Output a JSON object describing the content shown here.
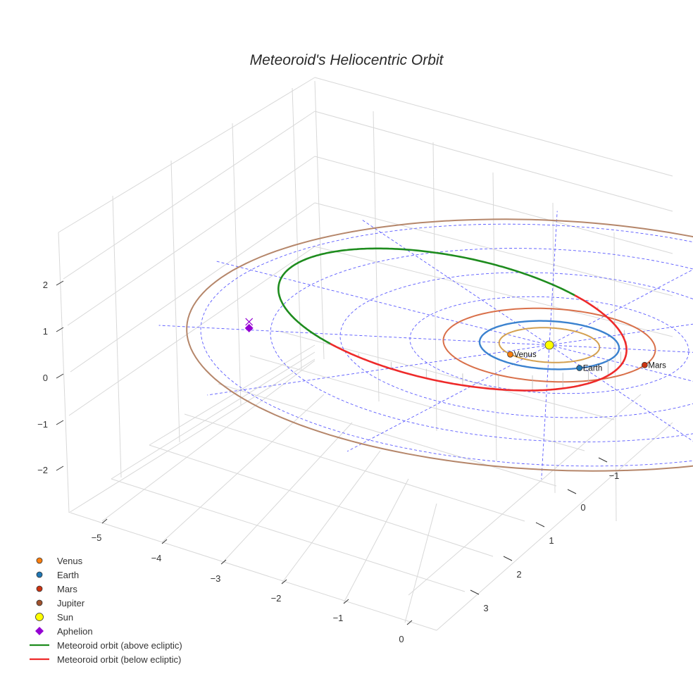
{
  "chart_data": {
    "type": "scatter3d",
    "title": "Meteoroid's Heliocentric Orbit",
    "axes": {
      "x": {
        "ticks": [
          -5,
          -4,
          -3,
          -2,
          -1,
          0
        ],
        "tick_labels": [
          "−5",
          "−4",
          "−3",
          "−2",
          "−1",
          "0"
        ]
      },
      "y": {
        "ticks": [
          -1,
          0,
          1,
          2,
          3
        ],
        "tick_labels": [
          "−1",
          "0",
          "1",
          "2",
          "3"
        ]
      },
      "z": {
        "ticks": [
          -2,
          -1,
          0,
          1,
          2
        ],
        "tick_labels": [
          "−2",
          "−1",
          "0",
          "1",
          "2"
        ]
      }
    },
    "grid": true,
    "legend_position": "bottom-left",
    "bodies": [
      {
        "name": "Venus",
        "label": "Venus",
        "color": "#ff7f0e",
        "orbit_color": "#d4a050",
        "orbit_radius_au": 0.72,
        "position": {
          "x": -0.55,
          "y": 0.47,
          "z": 0
        }
      },
      {
        "name": "Earth",
        "label": "Earth",
        "color": "#1f77b4",
        "orbit_color": "#3b82cf",
        "orbit_radius_au": 1.0,
        "position": {
          "x": 0.45,
          "y": 0.89,
          "z": 0
        }
      },
      {
        "name": "Mars",
        "label": "Mars",
        "color": "#cc3311",
        "orbit_color": "#d9704a",
        "orbit_radius_au": 1.52,
        "position": {
          "x": 1.38,
          "y": 0.63,
          "z": 0
        }
      },
      {
        "name": "Jupiter",
        "label": "",
        "color": "#a0522d",
        "orbit_color": "#b5866a",
        "orbit_radius_au": 5.2,
        "position": null
      },
      {
        "name": "Sun",
        "label": "",
        "color": "#ffff00",
        "position": {
          "x": 0,
          "y": 0,
          "z": 0
        }
      }
    ],
    "meteoroid_orbit": {
      "above_color": "#1e8c1e",
      "below_color": "#ee2a2a",
      "perihelion_distance_au": 1.0,
      "aphelion_distance_au": 4.3,
      "ecliptic_grid_color": "#5a5aff"
    },
    "aphelion": {
      "x": -4.3,
      "y": 0.3,
      "z": 0.2,
      "color": "#9400d3",
      "marker": "diamond"
    },
    "legend": [
      {
        "label": "Venus",
        "symbol": "circle",
        "color": "#ff7f0e"
      },
      {
        "label": "Earth",
        "symbol": "circle",
        "color": "#1f77b4"
      },
      {
        "label": "Mars",
        "symbol": "circle",
        "color": "#cc3311"
      },
      {
        "label": "Jupiter",
        "symbol": "circle",
        "color": "#a0522d"
      },
      {
        "label": "Sun",
        "symbol": "circle-large",
        "color": "#ffff00"
      },
      {
        "label": "Aphelion",
        "symbol": "diamond",
        "color": "#9400d3"
      },
      {
        "label": "Meteoroid orbit (above ecliptic)",
        "symbol": "line",
        "color": "#1e8c1e"
      },
      {
        "label": "Meteoroid orbit (below ecliptic)",
        "symbol": "line",
        "color": "#ee2a2a"
      }
    ]
  }
}
